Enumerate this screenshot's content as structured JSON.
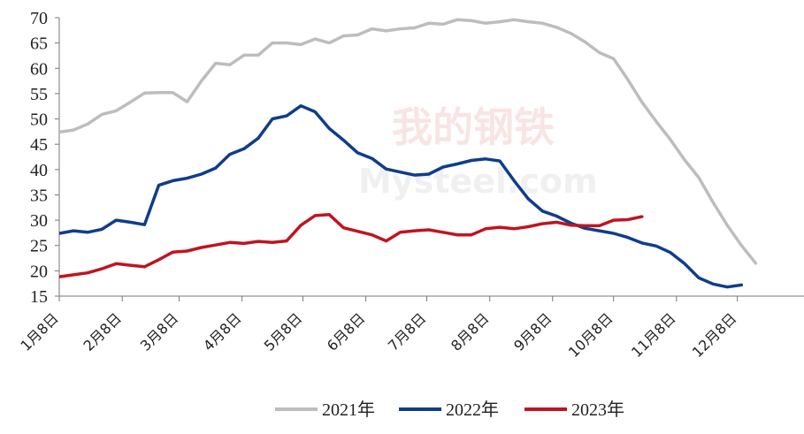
{
  "watermark": {
    "cn": "我的钢铁",
    "en": "Mysteel.com"
  },
  "chart_data": {
    "type": "line",
    "title": "",
    "xlabel": "",
    "ylabel": "",
    "ylim": [
      15,
      70
    ],
    "yticks": [
      15,
      20,
      25,
      30,
      35,
      40,
      45,
      50,
      55,
      60,
      65,
      70
    ],
    "xlim": [
      0,
      52.4
    ],
    "xticks": [
      {
        "label": "1月8日",
        "x": 0
      },
      {
        "label": "2月8日",
        "x": 4.43
      },
      {
        "label": "3月8日",
        "x": 8.43
      },
      {
        "label": "4月8日",
        "x": 12.86
      },
      {
        "label": "5月8日",
        "x": 17.14
      },
      {
        "label": "6月8日",
        "x": 21.57
      },
      {
        "label": "7月8日",
        "x": 25.86
      },
      {
        "label": "8月8日",
        "x": 30.29
      },
      {
        "label": "9月8日",
        "x": 34.71
      },
      {
        "label": "10月8日",
        "x": 39.0
      },
      {
        "label": "11月8日",
        "x": 43.43
      },
      {
        "label": "12月8日",
        "x": 47.71
      }
    ],
    "grid": false,
    "legend_position": "bottom",
    "series": [
      {
        "name": "2021年",
        "color": "#bdbdbd",
        "x": [
          0,
          1,
          2,
          3,
          4,
          5,
          6,
          7,
          8,
          9,
          10,
          11,
          12,
          13,
          14,
          15,
          16,
          17,
          18,
          19,
          20,
          21,
          22,
          23,
          24,
          25,
          26,
          27,
          28,
          29,
          30,
          31,
          32,
          33,
          34,
          35,
          36,
          37,
          38,
          39,
          40,
          41,
          42,
          43,
          44,
          45,
          46,
          47,
          48,
          49
        ],
        "values": [
          47.4,
          47.8,
          49.0,
          50.9,
          51.6,
          53.3,
          55.1,
          55.2,
          55.2,
          53.4,
          57.5,
          61.0,
          60.7,
          62.6,
          62.6,
          65.0,
          65.0,
          64.7,
          65.8,
          65.0,
          66.4,
          66.6,
          67.8,
          67.4,
          67.8,
          68.0,
          68.9,
          68.7,
          69.6,
          69.4,
          68.9,
          69.2,
          69.6,
          69.2,
          68.9,
          68.1,
          66.9,
          65.2,
          63.1,
          61.9,
          57.8,
          53.3,
          49.5,
          45.9,
          41.9,
          38.4,
          33.5,
          29.0,
          25.0,
          21.5
        ]
      },
      {
        "name": "2022年",
        "color": "#0f3d8c",
        "x": [
          0,
          1,
          2,
          3,
          4,
          5,
          6,
          7,
          8,
          9,
          10,
          11,
          12,
          13,
          14,
          15,
          16,
          17,
          18,
          19,
          20,
          21,
          22,
          23,
          24,
          25,
          26,
          27,
          28,
          29,
          30,
          31,
          32,
          33,
          34,
          35,
          36,
          37,
          38,
          39,
          40,
          41,
          42,
          43,
          44,
          45,
          46,
          47,
          48
        ],
        "values": [
          27.4,
          27.9,
          27.6,
          28.2,
          30.0,
          29.6,
          29.1,
          36.9,
          37.8,
          38.3,
          39.1,
          40.3,
          43.0,
          44.1,
          46.2,
          50.0,
          50.6,
          52.6,
          51.4,
          48.1,
          45.8,
          43.3,
          42.2,
          40.1,
          39.5,
          38.9,
          39.1,
          40.5,
          41.1,
          41.8,
          42.1,
          41.7,
          37.8,
          34.2,
          31.8,
          30.8,
          29.4,
          28.4,
          27.9,
          27.4,
          26.6,
          25.5,
          24.9,
          23.6,
          21.4,
          18.6,
          17.4,
          16.8,
          17.2
        ]
      },
      {
        "name": "2023年",
        "color": "#c0141f",
        "x": [
          0,
          1,
          2,
          3,
          4,
          5,
          6,
          7,
          8,
          9,
          10,
          11,
          12,
          13,
          14,
          15,
          16,
          17,
          18,
          19,
          20,
          21,
          22,
          23,
          24,
          25,
          26,
          27,
          28,
          29,
          30,
          31,
          32,
          33,
          34,
          35,
          36,
          37,
          38,
          39,
          40,
          41
        ],
        "values": [
          18.8,
          19.2,
          19.6,
          20.4,
          21.4,
          21.1,
          20.8,
          22.2,
          23.7,
          23.9,
          24.6,
          25.1,
          25.6,
          25.4,
          25.8,
          25.6,
          25.9,
          29.0,
          30.9,
          31.1,
          28.5,
          27.8,
          27.1,
          25.9,
          27.6,
          27.9,
          28.1,
          27.6,
          27.1,
          27.1,
          28.3,
          28.6,
          28.3,
          28.7,
          29.3,
          29.6,
          29.0,
          28.9,
          28.9,
          30.0,
          30.1,
          30.7
        ]
      }
    ]
  }
}
